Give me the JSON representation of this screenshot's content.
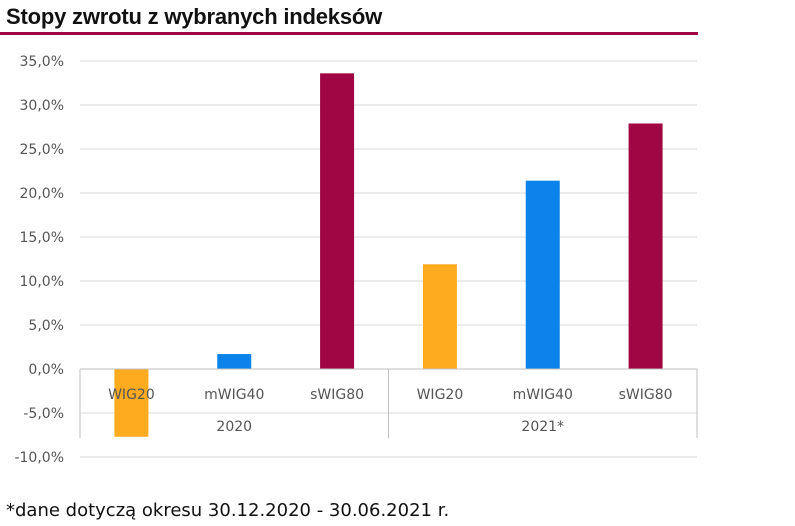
{
  "title": "Stopy zwrotu z wybranych indeksów",
  "footnote": "*dane dotyczą okresu 30.12.2020  - 30.06.2021 r.",
  "colors": {
    "wig20": "#ffab1f",
    "mwig40": "#0b83ea",
    "swig80": "#a10644",
    "accent_rule": "#a10644"
  },
  "chart_data": {
    "type": "bar",
    "title": "Stopy zwrotu z wybranych indeksów",
    "xlabel": "",
    "ylabel": "",
    "ylim": [
      -10,
      35
    ],
    "y_ticks": [
      "35,0%",
      "30,0%",
      "25,0%",
      "20,0%",
      "15,0%",
      "10,0%",
      "5,0%",
      "0,0%",
      "-5,0%",
      "-10,0%"
    ],
    "y_tick_values": [
      35,
      30,
      25,
      20,
      15,
      10,
      5,
      0,
      -5,
      -10
    ],
    "grid": true,
    "groups": [
      {
        "label": "2020",
        "categories": [
          "WIG20",
          "mWIG40",
          "sWIG80"
        ],
        "values": [
          -7.7,
          1.7,
          33.6
        ],
        "colors": [
          "#ffab1f",
          "#0b83ea",
          "#a10644"
        ]
      },
      {
        "label": "2021*",
        "categories": [
          "WIG20",
          "mWIG40",
          "sWIG80"
        ],
        "values": [
          11.9,
          21.4,
          27.9
        ],
        "colors": [
          "#ffab1f",
          "#0b83ea",
          "#a10644"
        ]
      }
    ]
  }
}
